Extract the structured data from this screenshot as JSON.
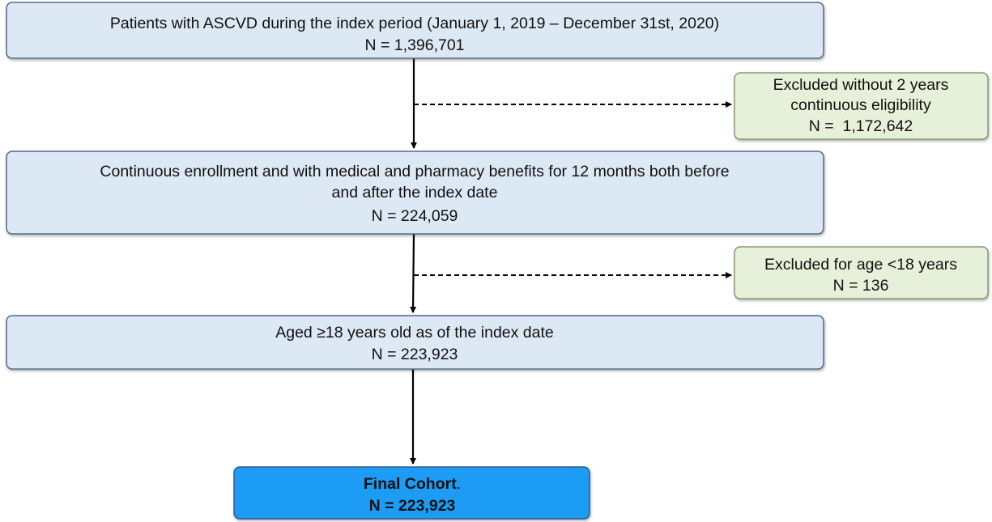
{
  "nodes": [
    {
      "lines": [
        "Patients with ASCVD during the index period (January 1, 2019 – December 31st, 2020)",
        "N = 1,396,701"
      ]
    },
    {
      "lines": [
        "Excluded without 2 years",
        "continuous eligibility",
        "N =  1,172,642"
      ]
    },
    {
      "lines": [
        "Continuous enrollment and with medical and pharmacy benefits for 12 months both before",
        "and after the index date",
        "N = 224,059"
      ]
    },
    {
      "lines": [
        "Excluded for age <18 years",
        "N = 136"
      ]
    },
    {
      "lines": [
        "Aged ≥18 years old as of the index date",
        "N = 223,923"
      ]
    },
    {
      "lines": [
        [
          "Final Cohort",
          "."
        ],
        "N = 223,923"
      ]
    }
  ]
}
